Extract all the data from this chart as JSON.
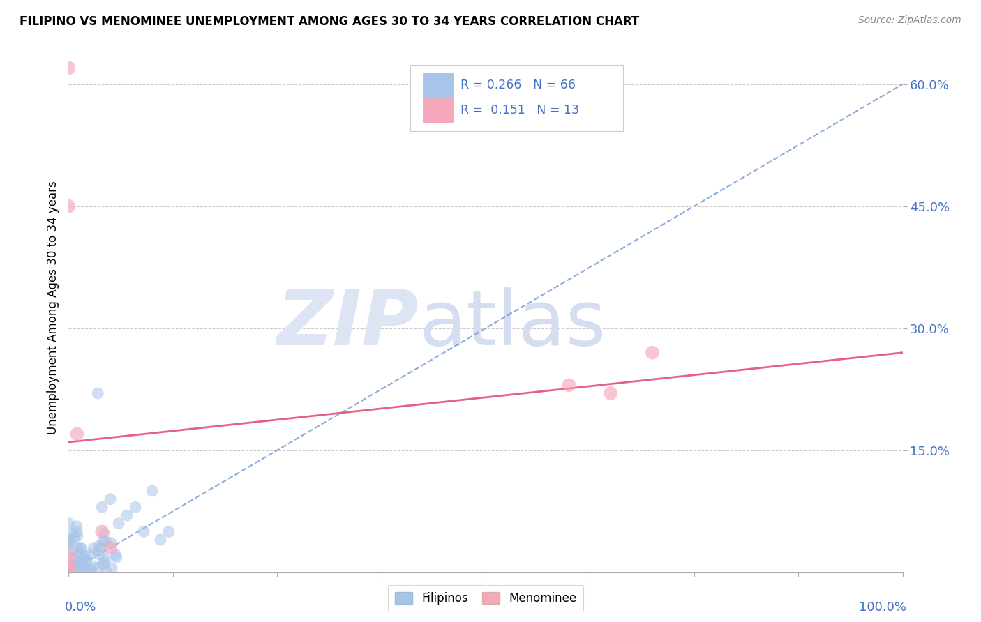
{
  "title": "FILIPINO VS MENOMINEE UNEMPLOYMENT AMONG AGES 30 TO 34 YEARS CORRELATION CHART",
  "source": "Source: ZipAtlas.com",
  "ylabel": "Unemployment Among Ages 30 to 34 years",
  "xlim": [
    0,
    1.0
  ],
  "ylim": [
    0,
    0.65
  ],
  "filipino_R": 0.266,
  "filipino_N": 66,
  "menominee_R": 0.151,
  "menominee_N": 13,
  "legend_label_1": "Filipinos",
  "legend_label_2": "Menominee",
  "filipino_color": "#a8c4e8",
  "menominee_color": "#f5a8bb",
  "filipino_line_color": "#5588cc",
  "menominee_line_color": "#e86080",
  "ytick_labels": [
    "15.0%",
    "30.0%",
    "45.0%",
    "60.0%"
  ],
  "ytick_vals": [
    0.15,
    0.3,
    0.45,
    0.6
  ],
  "fil_line_x0": 0.0,
  "fil_line_y0": 0.0,
  "fil_line_x1": 1.0,
  "fil_line_y1": 0.6,
  "men_line_x0": 0.0,
  "men_line_y0": 0.16,
  "men_line_x1": 1.0,
  "men_line_y1": 0.27
}
